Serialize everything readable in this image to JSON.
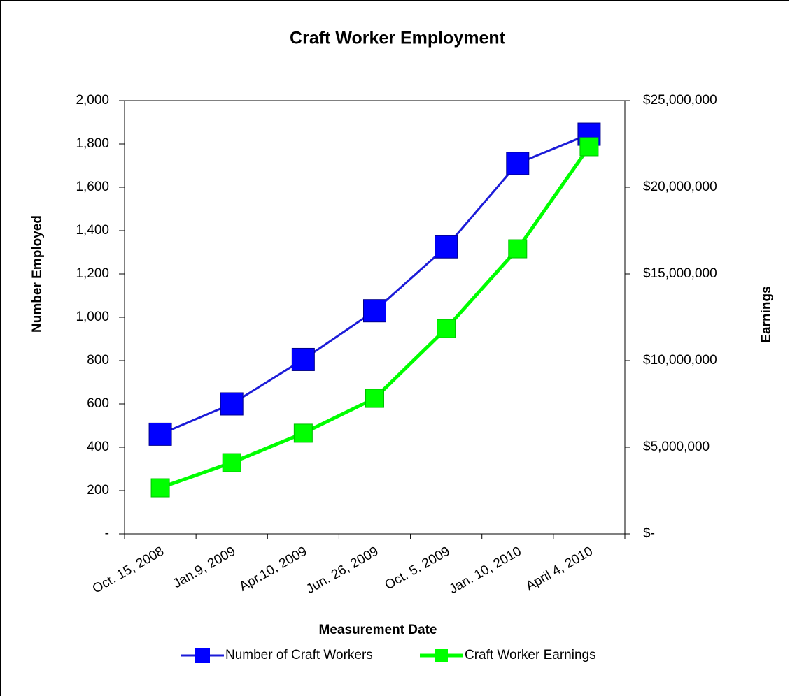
{
  "chart_data": {
    "type": "line",
    "title": "Craft Worker Employment",
    "x_label": "Measurement Date",
    "y_label": "Number Employed",
    "y2_label": "Earnings",
    "categories": [
      "Oct. 15, 2008",
      "Jan.9, 2009",
      "Apr.10, 2009",
      "Jun. 26, 2009",
      "Oct. 5, 2009",
      "Jan. 10, 2010",
      "April 4, 2010"
    ],
    "series": [
      {
        "name": "Number of Craft Workers",
        "color": "#0000ff",
        "line_color": "#1c1cd8",
        "axis": "y",
        "values": [
          460,
          600,
          805,
          1030,
          1325,
          1710,
          1845
        ]
      },
      {
        "name": "Craft Worker Earnings",
        "color": "#00ff00",
        "line_color": "#00ff00",
        "axis": "y2",
        "values": [
          2660000,
          4110000,
          5810000,
          7820000,
          11850000,
          16450000,
          22340000
        ]
      }
    ],
    "ylim": [
      0,
      2000
    ],
    "yticks": [
      {
        "value": 0,
        "label": "-"
      },
      200,
      400,
      600,
      800,
      {
        "value": 1000,
        "label": "1,000"
      },
      {
        "value": 1200,
        "label": "1,200"
      },
      {
        "value": 1400,
        "label": "1,400"
      },
      {
        "value": 1600,
        "label": "1,600"
      },
      {
        "value": 1800,
        "label": "1,800"
      },
      {
        "value": 2000,
        "label": "2,000"
      }
    ],
    "y2lim": [
      0,
      25000000
    ],
    "y2ticks": [
      {
        "value": 0,
        "label": "$-"
      },
      {
        "value": 5000000,
        "label": "$5,000,000"
      },
      {
        "value": 10000000,
        "label": "$10,000,000"
      },
      {
        "value": 15000000,
        "label": "$15,000,000"
      },
      {
        "value": 20000000,
        "label": "$20,000,000"
      },
      {
        "value": 25000000,
        "label": "$25,000,000"
      }
    ],
    "grid": false,
    "legend": "bottom"
  }
}
